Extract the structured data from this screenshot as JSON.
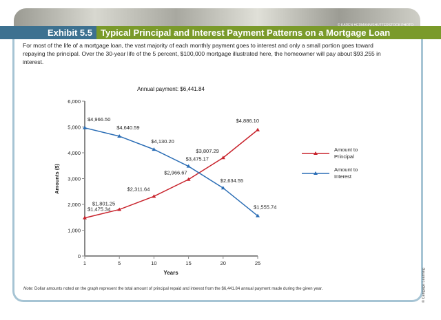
{
  "photo_credit": "© KAREN HERMANN/SHUTTERSTOCK PHOTO",
  "header": {
    "exhibit": "Exhibit 5.5",
    "title": "Typical Principal and Interest Payment Patterns on a Mortgage Loan"
  },
  "intro": "For most of the life of a mortgage loan, the vast majority of each monthly payment goes to interest and only a small portion goes toward repaying the principal. Over the 30-year life of the 5 percent, $100,000 mortgage illustrated here, the homeowner will pay about $93,255 in interest.",
  "note_label": "Note:",
  "note": " Dollar amounts noted on the graph represent the total amount of principal repaid and interest from the $6,441.84 annual payment made during the given year.",
  "copyright": "© Cengage Learning",
  "chart_data": {
    "type": "line",
    "title": "Annual payment: $6,441.84",
    "xlabel": "Years",
    "ylabel": "Amounts ($)",
    "x": [
      1,
      5,
      10,
      15,
      20,
      25
    ],
    "ylim": [
      0,
      6000
    ],
    "yticks": [
      0,
      1000,
      2000,
      3000,
      4000,
      5000,
      6000
    ],
    "ytick_labels": [
      "0",
      "1,000",
      "2,000",
      "3,000",
      "4,000",
      "5,000",
      "6,000"
    ],
    "legend_placement": "right",
    "series": [
      {
        "name": "Amount to Principal",
        "color": "#c8232c",
        "values": [
          1475.34,
          1801.25,
          2311.64,
          2966.67,
          3807.29,
          4886.1
        ],
        "labels": [
          "$1,475.34",
          "$1,801.25",
          "$2,311.64",
          "$2,966.67",
          "$3,807.29",
          "$4,886.10"
        ]
      },
      {
        "name": "Amount to Interest",
        "color": "#2a6db5",
        "values": [
          4966.5,
          4640.59,
          4130.2,
          3475.17,
          2634.55,
          1555.74
        ],
        "labels": [
          "$4,966.50",
          "$4,640.59",
          "$4,130.20",
          "$3,475.17",
          "$2,634.55",
          "$1,555.74"
        ]
      }
    ]
  }
}
